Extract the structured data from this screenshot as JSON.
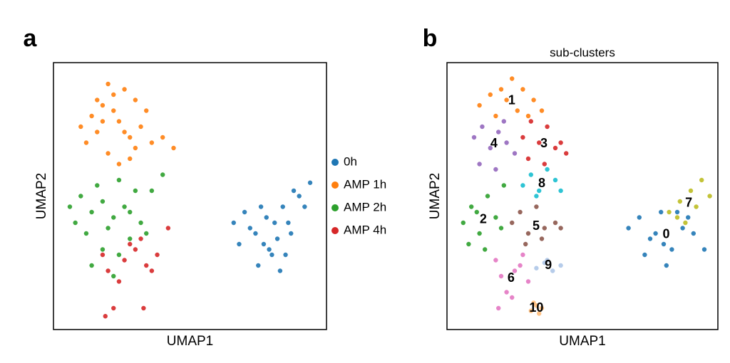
{
  "chart_data": [
    {
      "type": "scatter",
      "panel_label": "a",
      "x_label": "UMAP1",
      "y_label": "UMAP2",
      "xlim": [
        0,
        100
      ],
      "ylim": [
        0,
        100
      ],
      "legend": "right",
      "cluster_labels": false,
      "series": [
        {
          "name": "0h",
          "color": "#1f77b4",
          "x": [
            66,
            70,
            74,
            78,
            82,
            86,
            90,
            94,
            68,
            72,
            76,
            80,
            84,
            88,
            92,
            75,
            79,
            83,
            87,
            85,
            81,
            77
          ],
          "values": [
            40,
            44,
            36,
            42,
            34,
            40,
            50,
            55,
            32,
            38,
            46,
            28,
            46,
            52,
            46,
            24,
            30,
            22,
            36,
            28,
            40,
            32
          ]
        },
        {
          "name": "AMP 1h",
          "color": "#ff7f0e",
          "x": [
            10,
            14,
            18,
            22,
            26,
            30,
            34,
            12,
            16,
            20,
            24,
            28,
            32,
            36,
            40,
            44,
            20,
            24,
            28,
            16,
            22,
            26,
            30,
            18
          ],
          "values": [
            76,
            80,
            84,
            88,
            90,
            86,
            82,
            70,
            74,
            66,
            78,
            72,
            76,
            70,
            72,
            68,
            92,
            62,
            64,
            86,
            82,
            74,
            68,
            78
          ]
        },
        {
          "name": "AMP 2h",
          "color": "#2ca02c",
          "x": [
            6,
            10,
            14,
            18,
            22,
            26,
            30,
            8,
            12,
            16,
            20,
            24,
            28,
            32,
            36,
            40,
            18,
            24,
            14,
            22,
            28,
            34
          ],
          "values": [
            46,
            50,
            44,
            48,
            42,
            46,
            52,
            40,
            36,
            54,
            38,
            56,
            44,
            40,
            52,
            58,
            30,
            28,
            24,
            20,
            34,
            36
          ]
        },
        {
          "name": "AMP 4h",
          "color": "#d62728",
          "x": [
            18,
            20,
            22,
            26,
            30,
            34,
            38,
            42,
            24,
            28,
            36,
            32,
            19,
            33
          ],
          "values": [
            28,
            22,
            8,
            26,
            30,
            24,
            28,
            38,
            18,
            32,
            22,
            34,
            5,
            8
          ]
        }
      ]
    },
    {
      "type": "scatter",
      "panel_label": "b",
      "title": "sub-clusters",
      "x_label": "UMAP1",
      "y_label": "UMAP2",
      "xlim": [
        0,
        100
      ],
      "ylim": [
        0,
        100
      ],
      "cluster_labels": true,
      "series": [
        {
          "name": "0",
          "color": "#1f77b4",
          "x": [
            67,
            71,
            75,
            79,
            83,
            87,
            91,
            95,
            73,
            81,
            85,
            77,
            89,
            80
          ],
          "values": [
            38,
            42,
            34,
            44,
            30,
            38,
            36,
            30,
            28,
            24,
            44,
            36,
            42,
            32
          ]
        },
        {
          "name": "1",
          "color": "#ff7f0e",
          "x": [
            12,
            16,
            20,
            24,
            28,
            32,
            35,
            18,
            22,
            26,
            30
          ],
          "values": [
            84,
            88,
            90,
            94,
            90,
            86,
            82,
            80,
            86,
            82,
            80
          ]
        },
        {
          "name": "2",
          "color": "#2ca02c",
          "x": [
            6,
            9,
            12,
            15,
            18,
            21,
            8,
            14,
            20,
            11
          ],
          "values": [
            40,
            46,
            36,
            50,
            42,
            54,
            32,
            30,
            38,
            44
          ]
        },
        {
          "name": "3",
          "color": "#d62728",
          "x": [
            28,
            31,
            34,
            37,
            40,
            44,
            30,
            36,
            42
          ],
          "values": [
            72,
            78,
            70,
            76,
            68,
            66,
            64,
            62,
            70
          ]
        },
        {
          "name": "4",
          "color": "#9467bd",
          "x": [
            10,
            13,
            16,
            19,
            22,
            25,
            12,
            18,
            21
          ],
          "values": [
            72,
            76,
            68,
            74,
            70,
            66,
            62,
            60,
            78
          ]
        },
        {
          "name": "5",
          "color": "#8c564b",
          "x": [
            24,
            27,
            30,
            33,
            36,
            40,
            42,
            29,
            35
          ],
          "values": [
            40,
            44,
            36,
            46,
            38,
            40,
            38,
            32,
            34
          ]
        },
        {
          "name": "6",
          "color": "#e377c2",
          "x": [
            18,
            20,
            22,
            25,
            28,
            30,
            19,
            24,
            27
          ],
          "values": [
            26,
            20,
            14,
            22,
            28,
            18,
            8,
            12,
            24
          ]
        },
        {
          "name": "7",
          "color": "#bcbd22",
          "x": [
            82,
            86,
            90,
            94,
            97,
            88,
            92,
            85
          ],
          "values": [
            44,
            48,
            52,
            56,
            50,
            40,
            46,
            42
          ]
        },
        {
          "name": "8",
          "color": "#17becf",
          "x": [
            28,
            31,
            34,
            37,
            40,
            42,
            33
          ],
          "values": [
            54,
            58,
            52,
            60,
            56,
            52,
            50
          ]
        },
        {
          "name": "9",
          "color": "#aec7e8",
          "x": [
            33,
            36,
            39,
            42,
            37
          ],
          "values": [
            23,
            25,
            22,
            24,
            26
          ]
        },
        {
          "name": "10",
          "color": "#ffbb78",
          "x": [
            31,
            33,
            35,
            32,
            34
          ],
          "values": [
            7,
            9,
            8,
            10,
            6
          ]
        }
      ]
    }
  ]
}
